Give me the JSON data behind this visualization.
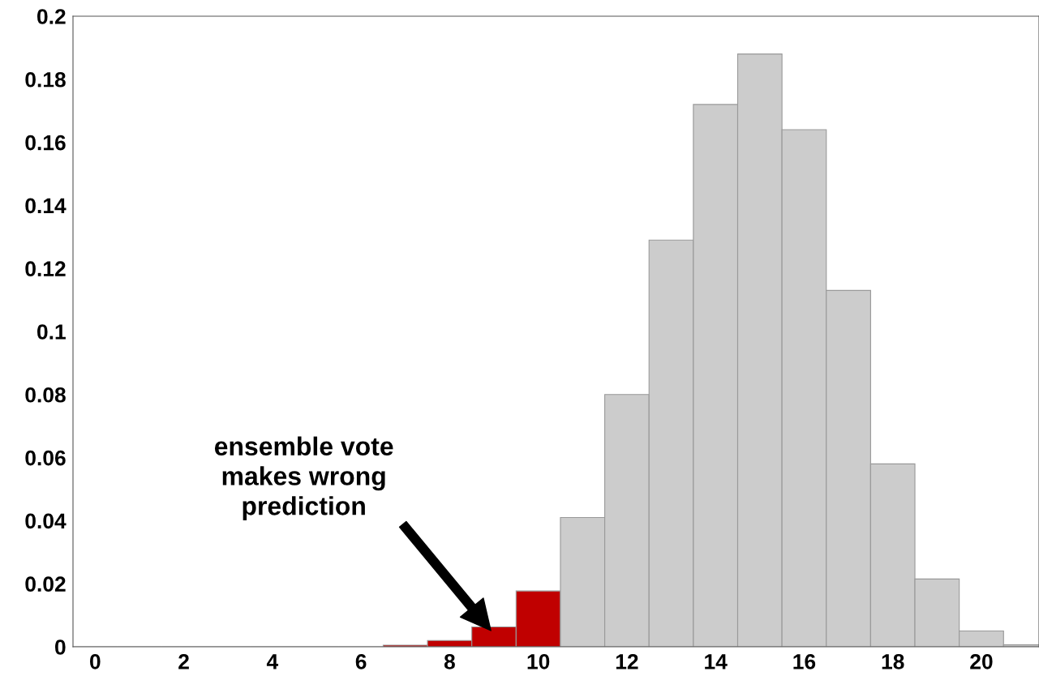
{
  "chart_data": {
    "type": "histogram",
    "bins": [
      -0.5,
      0.5,
      1.5,
      2.5,
      3.5,
      4.5,
      5.5,
      6.5,
      7.5,
      8.5,
      9.5,
      10.5,
      11.5,
      12.5,
      13.5,
      14.5,
      15.5,
      16.5,
      17.5,
      18.5,
      19.5,
      20.5,
      21.5
    ],
    "values": [
      0,
      0,
      0,
      0,
      0,
      0,
      0,
      0.0005,
      0.002,
      0.0063,
      0.0177,
      0.041,
      0.08,
      0.129,
      0.172,
      0.188,
      0.164,
      0.113,
      0.058,
      0.0215,
      0.005,
      0.0006
    ],
    "colors": [
      "#cccccc",
      "#cccccc",
      "#cccccc",
      "#cccccc",
      "#cccccc",
      "#cccccc",
      "#cccccc",
      "#c00000",
      "#c00000",
      "#c00000",
      "#c00000",
      "#cccccc",
      "#cccccc",
      "#cccccc",
      "#cccccc",
      "#cccccc",
      "#cccccc",
      "#cccccc",
      "#cccccc",
      "#cccccc",
      "#cccccc",
      "#cccccc"
    ],
    "xlim": [
      -0.5,
      21.3
    ],
    "ylim": [
      0,
      0.2
    ],
    "xticks": [
      0,
      2,
      4,
      6,
      8,
      10,
      12,
      14,
      16,
      18,
      20
    ],
    "yticks": [
      0,
      0.02,
      0.04,
      0.06,
      0.08,
      0.1,
      0.12,
      0.14,
      0.16,
      0.18,
      0.2
    ],
    "annotations": [
      "ensemble vote\nmakes wrong\nprediction"
    ],
    "grid": false,
    "legend": false
  }
}
